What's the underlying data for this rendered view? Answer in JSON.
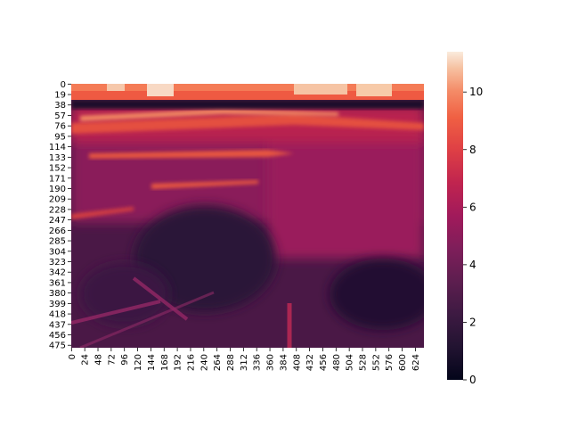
{
  "chart_data": {
    "type": "heatmap",
    "title": "",
    "xlabel": "",
    "ylabel": "",
    "x_tick_labels": [
      "0",
      "24",
      "48",
      "72",
      "96",
      "120",
      "144",
      "168",
      "192",
      "216",
      "240",
      "264",
      "288",
      "312",
      "336",
      "360",
      "384",
      "408",
      "432",
      "456",
      "480",
      "504",
      "528",
      "552",
      "576",
      "600",
      "624"
    ],
    "y_tick_labels": [
      "0",
      "19",
      "38",
      "57",
      "76",
      "95",
      "114",
      "133",
      "152",
      "171",
      "190",
      "209",
      "228",
      "247",
      "266",
      "285",
      "304",
      "323",
      "342",
      "361",
      "380",
      "399",
      "418",
      "437",
      "456",
      "475"
    ],
    "x_range": [
      0,
      640
    ],
    "y_range": [
      0,
      480
    ],
    "colorbar": {
      "colormap": "rocket",
      "min": 0,
      "max": 11.4,
      "tick_labels": [
        "0",
        "2",
        "4",
        "6",
        "8",
        "10"
      ],
      "tick_values": [
        0,
        2,
        4,
        6,
        8,
        10
      ]
    },
    "regions": [
      {
        "desc": "bright band across top rows",
        "y_rows": [
          0,
          20
        ],
        "value": 9.5
      },
      {
        "desc": "saturated patches at very top",
        "y_rows": [
          0,
          12
        ],
        "value": 11
      },
      {
        "desc": "dark stripe below top band",
        "y_rows": [
          30,
          45
        ],
        "value": 0.8
      },
      {
        "desc": "streaky bright band",
        "y_rows": [
          55,
          95
        ],
        "value": 6
      },
      {
        "desc": "mid region",
        "y_rows": [
          95,
          260
        ],
        "value": 4.5
      },
      {
        "desc": "dark lower region",
        "y_rows": [
          260,
          480
        ],
        "value": 2.5
      }
    ]
  }
}
